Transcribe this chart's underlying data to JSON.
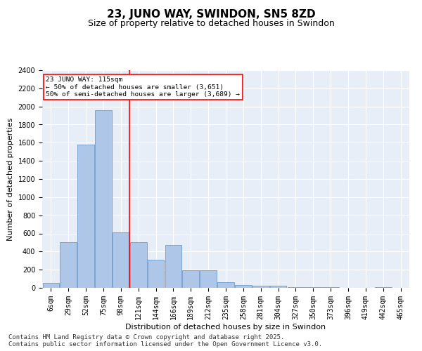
{
  "title": "23, JUNO WAY, SWINDON, SN5 8ZD",
  "subtitle": "Size of property relative to detached houses in Swindon",
  "xlabel": "Distribution of detached houses by size in Swindon",
  "ylabel": "Number of detached properties",
  "categories": [
    "6sqm",
    "29sqm",
    "52sqm",
    "75sqm",
    "98sqm",
    "121sqm",
    "144sqm",
    "166sqm",
    "189sqm",
    "212sqm",
    "235sqm",
    "258sqm",
    "281sqm",
    "304sqm",
    "327sqm",
    "350sqm",
    "373sqm",
    "396sqm",
    "419sqm",
    "442sqm",
    "465sqm"
  ],
  "values": [
    55,
    500,
    1580,
    1960,
    610,
    500,
    310,
    470,
    195,
    195,
    65,
    30,
    20,
    20,
    10,
    5,
    5,
    0,
    0,
    10,
    0
  ],
  "bar_color": "#aec6e8",
  "bar_edge_color": "#5a8fc4",
  "vline_x_index": 5,
  "vline_color": "red",
  "annotation_text": "23 JUNO WAY: 115sqm\n← 50% of detached houses are smaller (3,651)\n50% of semi-detached houses are larger (3,689) →",
  "annotation_box_color": "white",
  "annotation_box_edge_color": "red",
  "ylim": [
    0,
    2400
  ],
  "yticks": [
    0,
    200,
    400,
    600,
    800,
    1000,
    1200,
    1400,
    1600,
    1800,
    2000,
    2200,
    2400
  ],
  "footnote": "Contains HM Land Registry data © Crown copyright and database right 2025.\nContains public sector information licensed under the Open Government Licence v3.0.",
  "bg_color": "#e8eef8",
  "grid_color": "#ffffff",
  "title_fontsize": 11,
  "subtitle_fontsize": 9,
  "tick_fontsize": 7,
  "label_fontsize": 8,
  "footnote_fontsize": 6.5
}
